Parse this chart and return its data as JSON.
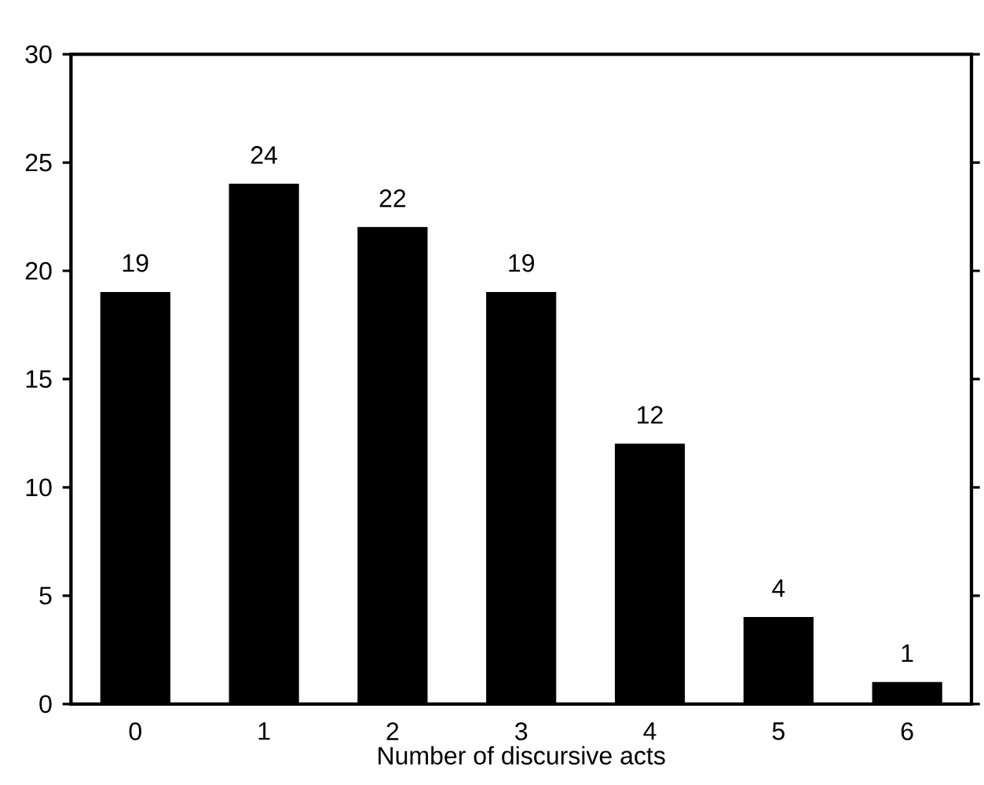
{
  "chart_data": {
    "type": "bar",
    "xlabel": "Number of discursive acts",
    "categories": [
      "0",
      "1",
      "2",
      "3",
      "4",
      "5",
      "6"
    ],
    "values": [
      19,
      24,
      22,
      19,
      12,
      4,
      1
    ],
    "color": "#000000",
    "ylim": [
      0,
      30
    ],
    "yticks": [
      0,
      5,
      10,
      15,
      20,
      25,
      30
    ],
    "data_labels": true
  }
}
